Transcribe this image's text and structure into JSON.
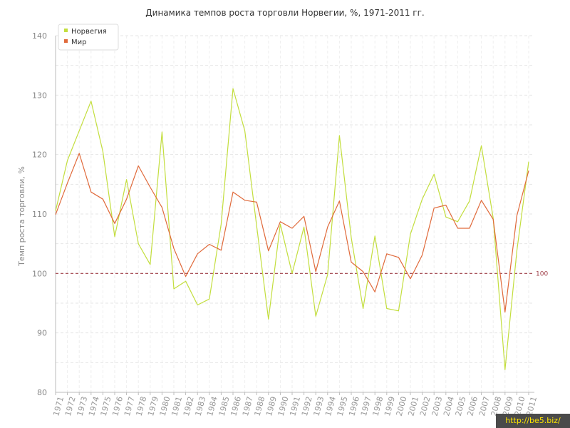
{
  "chart_data": {
    "type": "line",
    "title": "Динамика темпов роста торговли Норвегии, %, 1971-2011 гг.",
    "xlabel": "",
    "ylabel": "Темп роста торговли, %",
    "ylim": [
      80,
      140
    ],
    "yticks": [
      "80",
      "90",
      "100",
      "110",
      "120",
      "130",
      "140"
    ],
    "x": [
      "1971",
      "1972",
      "1973",
      "1974",
      "1975",
      "1976",
      "1977",
      "1978",
      "1979",
      "1980",
      "1981",
      "1982",
      "1983",
      "1984",
      "1985",
      "1986",
      "1987",
      "1988",
      "1989",
      "1990",
      "1991",
      "1992",
      "1993",
      "1994",
      "1995",
      "1996",
      "1997",
      "1998",
      "1999",
      "2000",
      "2001",
      "2002",
      "2003",
      "2004",
      "2005",
      "2006",
      "2007",
      "2008",
      "2009",
      "2010",
      "2011"
    ],
    "series": [
      {
        "name": "Норвегия",
        "color": "#c3de3e",
        "values": [
          110.5,
          119.0,
          124.0,
          129.0,
          120.5,
          106.2,
          115.8,
          105.0,
          101.5,
          123.8,
          97.4,
          98.7,
          94.7,
          95.7,
          108.3,
          131.1,
          124.0,
          108.0,
          92.3,
          108.3,
          100.0,
          107.8,
          92.8,
          99.8,
          123.2,
          106.0,
          94.1,
          106.3,
          94.1,
          93.7,
          106.6,
          112.5,
          116.7,
          109.5,
          108.7,
          112.2,
          121.5,
          109.3,
          83.8,
          103.8,
          118.8
        ]
      },
      {
        "name": "Мир",
        "color": "#e06a3b",
        "values": [
          109.9,
          115.2,
          120.2,
          113.7,
          112.5,
          108.4,
          112.5,
          118.1,
          114.5,
          111.1,
          104.2,
          99.5,
          103.3,
          104.9,
          103.9,
          113.7,
          112.3,
          112.0,
          103.8,
          108.7,
          107.6,
          109.6,
          100.3,
          107.8,
          112.2,
          101.9,
          100.3,
          96.9,
          103.3,
          102.7,
          99.1,
          103.1,
          111.0,
          111.5,
          107.6,
          107.6,
          112.3,
          109.1,
          93.5,
          109.7,
          117.3
        ]
      }
    ],
    "reference_line": {
      "value": 100,
      "label": "100",
      "color": "#a0404a"
    },
    "legend": "top-left",
    "grid": true
  },
  "watermark": "http://be5.biz/"
}
